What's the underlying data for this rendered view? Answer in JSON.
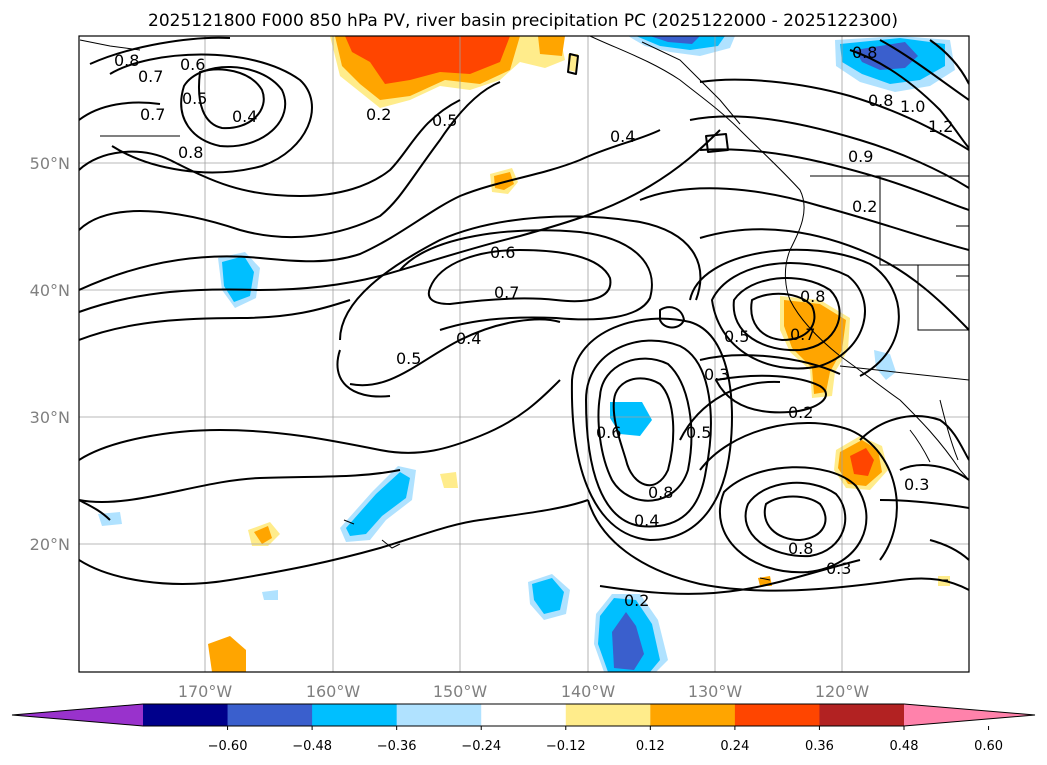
{
  "title": "2025121800 F000 850 hPa PV, river basin precipitation PC (2025122000 - 2025122300)",
  "lon_labels": [
    "170°W",
    "160°W",
    "150°W",
    "140°W",
    "130°W",
    "120°W"
  ],
  "lat_labels": [
    "50°N",
    "40°N",
    "30°N",
    "20°N"
  ],
  "colorbar": {
    "tick_labels": [
      "−0.60",
      "−0.48",
      "−0.36",
      "−0.24",
      "−0.12",
      "0.12",
      "0.24",
      "0.36",
      "0.48",
      "0.60"
    ],
    "colors": [
      "#9932cc",
      "#00008b",
      "#3a5fcd",
      "#00bfff",
      "#b0e2ff",
      "#ffffff",
      "#ffec8b",
      "#ffa500",
      "#ff4500",
      "#b22222",
      "#ff82ab"
    ]
  },
  "contour_labels": [
    "0.8",
    "0.7",
    "0.6",
    "0.5",
    "0.4",
    "0.7",
    "0.8",
    "0.5",
    "0.4",
    "0.2",
    "0.6",
    "0.7",
    "0.5",
    "0.4",
    "0.8",
    "0.7",
    "0.5",
    "0.3",
    "0.2",
    "0.6",
    "0.5",
    "0.8",
    "0.4",
    "0.8",
    "0.3",
    "0.3",
    "0.2",
    "0.8",
    "0.8",
    "1.0",
    "1.2",
    "0.9",
    "0.2"
  ]
}
